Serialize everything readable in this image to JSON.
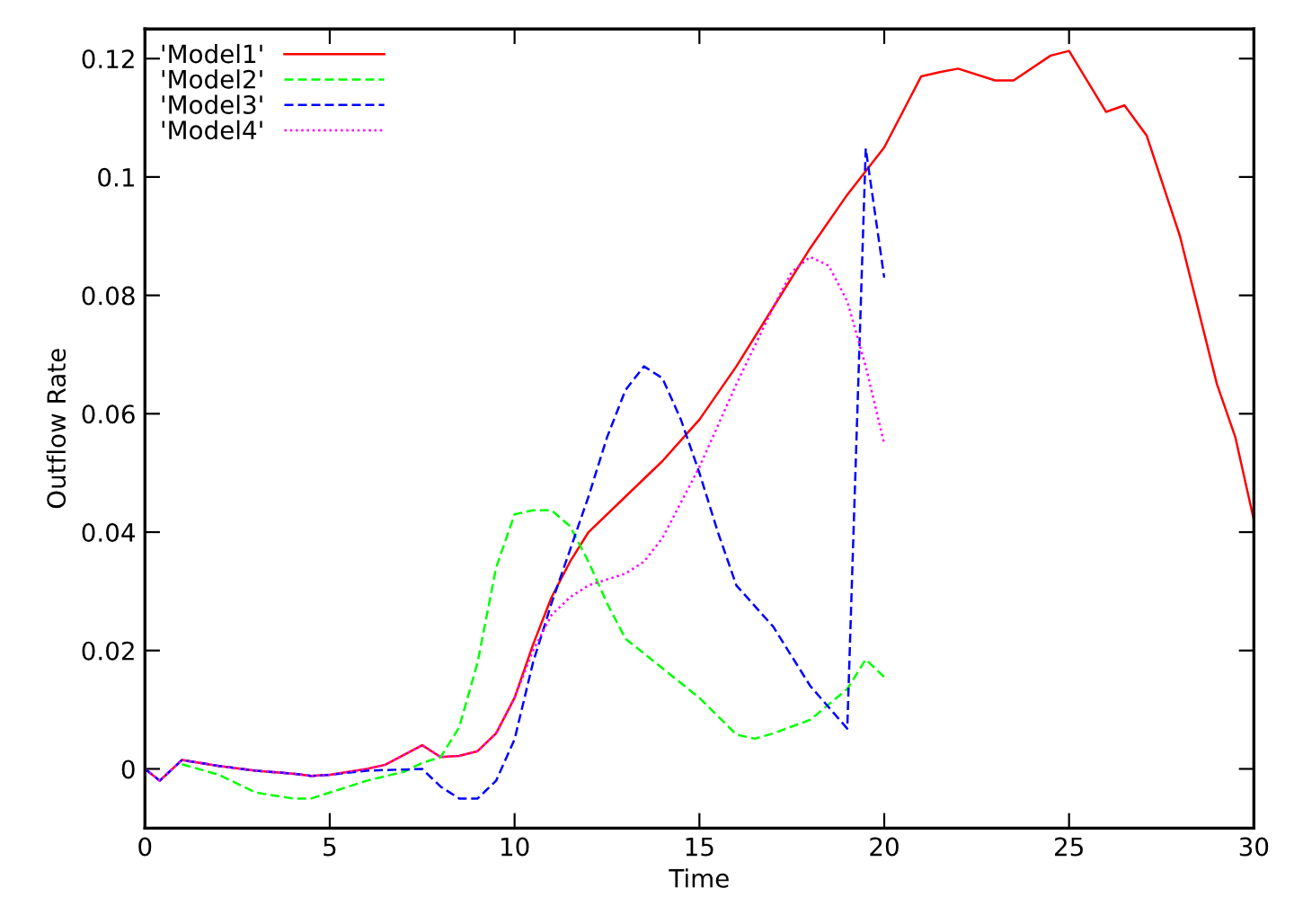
{
  "chart_data": {
    "type": "line",
    "xlabel": "Time",
    "ylabel": "Outflow Rate",
    "xlim": [
      0,
      30
    ],
    "ylim": [
      -0.01,
      0.125
    ],
    "xticks": [
      0,
      5,
      10,
      15,
      20,
      25,
      30
    ],
    "yticks": [
      0,
      0.02,
      0.04,
      0.06,
      0.08,
      0.1,
      0.12
    ],
    "grid": false,
    "legend": "top left",
    "marker": "none",
    "series": [
      {
        "name": "'Model1'",
        "color": "#ff0000",
        "line_style": "solid",
        "x": [
          0,
          0.4,
          1,
          2,
          3,
          4,
          4.5,
          5,
          6,
          6.5,
          7.5,
          8,
          8.5,
          9,
          9.5,
          10,
          10.5,
          11,
          11.5,
          12,
          13,
          14,
          15,
          16,
          17,
          18,
          19,
          20,
          20.5,
          21,
          21.5,
          22,
          23,
          23.5,
          24.5,
          25,
          26,
          26.5,
          27.1,
          28,
          29,
          29.5,
          30
        ],
        "values": [
          0,
          -0.002,
          0.0015,
          0.0005,
          -0.0003,
          -0.0008,
          -0.0012,
          -0.001,
          0,
          0.0007,
          0.004,
          0.002,
          0.0022,
          0.003,
          0.006,
          0.012,
          0.021,
          0.029,
          0.035,
          0.04,
          0.046,
          0.052,
          0.059,
          0.068,
          0.078,
          0.088,
          0.097,
          0.105,
          0.111,
          0.117,
          0.1177,
          0.1183,
          0.1163,
          0.1163,
          0.1205,
          0.1213,
          0.111,
          0.1121,
          0.107,
          0.09,
          0.065,
          0.056,
          0.042
        ]
      },
      {
        "name": "'Model2'",
        "color": "#00ff00",
        "line_style": "dashed",
        "x": [
          1,
          2,
          3,
          4,
          4.5,
          5,
          6,
          7,
          7.5,
          8,
          8.5,
          9,
          9.5,
          10,
          10.5,
          11,
          11.5,
          12,
          12.5,
          13,
          14,
          15,
          16,
          16.5,
          17,
          18,
          19,
          19.5,
          20
        ],
        "values": [
          0.0008,
          -0.001,
          -0.004,
          -0.005,
          -0.005,
          -0.004,
          -0.002,
          -0.0005,
          0.001,
          0.002,
          0.007,
          0.018,
          0.034,
          0.043,
          0.0437,
          0.0437,
          0.041,
          0.035,
          0.028,
          0.022,
          0.017,
          0.012,
          0.0058,
          0.0051,
          0.006,
          0.0083,
          0.0135,
          0.0185,
          0.0155
        ]
      },
      {
        "name": "'Model3'",
        "color": "#0000ff",
        "line_style": "dashed",
        "x": [
          0,
          0.4,
          1,
          2,
          3,
          4,
          4.5,
          5,
          6,
          7.5,
          8,
          8.5,
          9,
          9.5,
          10,
          10.5,
          11,
          11.5,
          12,
          12.5,
          13,
          13.5,
          14,
          14.5,
          15,
          15.5,
          16,
          17,
          18,
          19,
          19.5,
          20
        ],
        "values": [
          0,
          -0.002,
          0.0015,
          0.0005,
          -0.0003,
          -0.0008,
          -0.0012,
          -0.001,
          -0.0003,
          0,
          -0.003,
          -0.005,
          -0.005,
          -0.002,
          0.005,
          0.018,
          0.028,
          0.037,
          0.046,
          0.056,
          0.064,
          0.068,
          0.066,
          0.059,
          0.05,
          0.04,
          0.031,
          0.024,
          0.014,
          0.0068,
          0.1048,
          0.083
        ]
      },
      {
        "name": "'Model4'",
        "color": "#ff00ff",
        "line_style": "dotted",
        "x": [
          0,
          0.4,
          1,
          2,
          3,
          4,
          4.5,
          5,
          6,
          6.5,
          7.5,
          8,
          8.5,
          9,
          9.5,
          10,
          10.5,
          11,
          11.5,
          12,
          13,
          13.5,
          14,
          15,
          16,
          17,
          17.5,
          18,
          18.5,
          19,
          19.5,
          20
        ],
        "values": [
          0,
          -0.002,
          0.0015,
          0.0005,
          -0.0003,
          -0.0008,
          -0.0012,
          -0.001,
          0,
          0.0007,
          0.004,
          0.002,
          0.0022,
          0.003,
          0.006,
          0.012,
          0.02,
          0.026,
          0.029,
          0.031,
          0.033,
          0.035,
          0.039,
          0.051,
          0.065,
          0.078,
          0.084,
          0.0865,
          0.085,
          0.079,
          0.068,
          0.0549
        ]
      }
    ]
  }
}
